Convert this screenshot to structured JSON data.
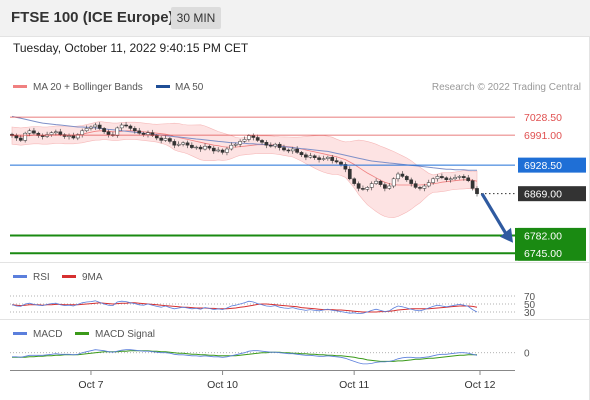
{
  "header": {
    "title": "FTSE 100 (ICE Europe)",
    "timeframe": "30 MIN",
    "timestamp": "Tuesday, October 11, 2022 9:40:15 PM CET"
  },
  "legend": {
    "ma20_label": "MA 20 + Bollinger Bands",
    "ma50_label": "MA 50",
    "credit": "Research © 2022 Trading Central"
  },
  "colors": {
    "bollinger_fill": "#fde3e3",
    "ma20": "#f08080",
    "ma50": "#1f4e96",
    "resistance": "#e05050",
    "pivot": "#1f6fd6",
    "current": "#333333",
    "support": "#1a8a12",
    "rsi": "#5b7fdc",
    "rsi_ma": "#d63030",
    "macd": "#5b7fdc",
    "macd_signal": "#3b9a1a",
    "arrow": "#2f5aa0"
  },
  "chart_data": [
    {
      "type": "line",
      "title": "FTSE 100 (ICE Europe)",
      "ylim": [
        6735,
        7060
      ],
      "levels": [
        {
          "value": 7028.5,
          "label": "7028.50",
          "kind": "resistance"
        },
        {
          "value": 6991.0,
          "label": "6991.00",
          "kind": "resistance"
        },
        {
          "value": 6928.5,
          "label": "6928.50",
          "kind": "pivot"
        },
        {
          "value": 6869.0,
          "label": "6869.00",
          "kind": "current"
        },
        {
          "value": 6782.0,
          "label": "6782.00",
          "kind": "support"
        },
        {
          "value": 6745.0,
          "label": "6745.00",
          "kind": "support"
        }
      ],
      "x_ticks": [
        "Oct 7",
        "Oct 10",
        "Oct 11",
        "Oct 12"
      ],
      "close": [
        6990,
        6985,
        6980,
        6995,
        7000,
        6995,
        6990,
        6988,
        6992,
        6996,
        6998,
        6992,
        6988,
        6990,
        6985,
        6992,
        7000,
        7005,
        7008,
        7012,
        7005,
        6998,
        6992,
        6990,
        7006,
        7012,
        7010,
        7005,
        7000,
        6995,
        6992,
        6996,
        6990,
        6985,
        6980,
        6984,
        6978,
        6970,
        6972,
        6975,
        6970,
        6965,
        6966,
        6962,
        6968,
        6964,
        6958,
        6960,
        6955,
        6962,
        6970,
        6972,
        6978,
        6982,
        6990,
        6986,
        6980,
        6976,
        6970,
        6968,
        6972,
        6965,
        6960,
        6958,
        6962,
        6955,
        6950,
        6945,
        6948,
        6944,
        6940,
        6942,
        6945,
        6938,
        6935,
        6930,
        6920,
        6900,
        6890,
        6880,
        6878,
        6882,
        6890,
        6895,
        6888,
        6880,
        6885,
        6900,
        6910,
        6905,
        6898,
        6890,
        6882,
        6880,
        6885,
        6892,
        6900,
        6905,
        6902,
        6898,
        6900,
        6903,
        6905,
        6902,
        6896,
        6880,
        6869
      ],
      "series": [
        {
          "name": "MA 20 + Bollinger Bands",
          "values": [
            6990,
            6989,
            6988,
            6989,
            6990,
            6991,
            6991,
            6990,
            6990,
            6991,
            6992,
            6992,
            6991,
            6991,
            6991,
            6992,
            6993,
            6995,
            6997,
            6999,
            7000,
            7000,
            6999,
            6998,
            6998,
            6999,
            7000,
            7000,
            7000,
            6999,
            6998,
            6997,
            6996,
            6995,
            6994,
            6993,
            6991,
            6988,
            6986,
            6984,
            6982,
            6980,
            6978,
            6976,
            6974,
            6972,
            6970,
            6969,
            6967,
            6966,
            6966,
            6966,
            6967,
            6968,
            6969,
            6970,
            6971,
            6971,
            6971,
            6971,
            6970,
            6969,
            6968,
            6967,
            6966,
            6964,
            6962,
            6960,
            6958,
            6956,
            6954,
            6952,
            6950,
            6948,
            6946,
            6943,
            6940,
            6935,
            6930,
            6924,
            6918,
            6912,
            6907,
            6902,
            6897,
            6893,
            6890,
            6888,
            6887,
            6887,
            6887,
            6887,
            6887,
            6887,
            6888,
            6889,
            6890,
            6891,
            6893,
            6894,
            6895,
            6896,
            6897,
            6898,
            6898,
            6897,
            6895
          ]
        },
        {
          "name": "MA 50",
          "values": [
            7030,
            7028,
            7026,
            7024,
            7022,
            7020,
            7018,
            7016,
            7015,
            7014,
            7013,
            7012,
            7011,
            7010,
            7009,
            7008,
            7008,
            7007,
            7007,
            7006,
            7005,
            7004,
            7003,
            7002,
            7001,
            7000,
            6999,
            6998,
            6997,
            6996,
            6995,
            6994,
            6993,
            6992,
            6991,
            6990,
            6989,
            6988,
            6987,
            6986,
            6985,
            6984,
            6983,
            6982,
            6981,
            6980,
            6979,
            6978,
            6977,
            6976,
            6975,
            6975,
            6974,
            6974,
            6973,
            6973,
            6972,
            6972,
            6971,
            6970,
            6969,
            6968,
            6967,
            6966,
            6965,
            6964,
            6963,
            6962,
            6961,
            6960,
            6959,
            6958,
            6957,
            6955,
            6953,
            6951,
            6949,
            6947,
            6945,
            6943,
            6941,
            6939,
            6937,
            6936,
            6935,
            6934,
            6933,
            6932,
            6931,
            6930,
            6929,
            6928,
            6927,
            6926,
            6925,
            6924,
            6923,
            6922,
            6921,
            6920,
            6920,
            6919,
            6919,
            6919,
            6918,
            6918,
            6918
          ]
        }
      ]
    },
    {
      "type": "line",
      "legend": [
        "RSI",
        "9MA"
      ],
      "ylim": [
        20,
        80
      ],
      "levels": [
        70,
        50,
        30
      ],
      "level_labels": [
        "70",
        "50",
        "30"
      ],
      "series": [
        {
          "name": "RSI",
          "values": [
            48,
            45,
            44,
            50,
            52,
            49,
            47,
            46,
            49,
            51,
            52,
            48,
            46,
            47,
            45,
            49,
            53,
            55,
            56,
            58,
            54,
            50,
            47,
            46,
            55,
            57,
            56,
            53,
            51,
            48,
            47,
            50,
            47,
            44,
            42,
            45,
            41,
            38,
            40,
            42,
            40,
            38,
            39,
            37,
            41,
            39,
            36,
            38,
            36,
            40,
            45,
            47,
            50,
            53,
            57,
            55,
            51,
            48,
            45,
            44,
            46,
            42,
            40,
            39,
            41,
            38,
            36,
            34,
            36,
            34,
            33,
            35,
            37,
            34,
            33,
            31,
            29,
            27,
            28,
            26,
            27,
            30,
            34,
            37,
            34,
            31,
            33,
            40,
            45,
            43,
            40,
            37,
            34,
            33,
            36,
            40,
            44,
            47,
            45,
            43,
            45,
            47,
            49,
            47,
            44,
            36,
            30
          ]
        },
        {
          "name": "9MA",
          "values": [
            48,
            47,
            46,
            47,
            48,
            48,
            48,
            47,
            48,
            48,
            49,
            49,
            48,
            48,
            48,
            48,
            49,
            50,
            51,
            52,
            53,
            52,
            51,
            50,
            51,
            52,
            52,
            53,
            53,
            52,
            51,
            50,
            49,
            48,
            47,
            46,
            45,
            44,
            43,
            42,
            42,
            41,
            40,
            40,
            40,
            39,
            39,
            38,
            38,
            38,
            39,
            40,
            42,
            43,
            45,
            47,
            49,
            50,
            50,
            49,
            48,
            47,
            46,
            45,
            44,
            43,
            41,
            40,
            39,
            38,
            37,
            36,
            36,
            36,
            35,
            35,
            34,
            33,
            32,
            31,
            30,
            30,
            30,
            30,
            31,
            31,
            32,
            33,
            35,
            36,
            37,
            38,
            38,
            38,
            38,
            38,
            39,
            40,
            41,
            42,
            43,
            44,
            45,
            45,
            45,
            44,
            42
          ]
        }
      ]
    },
    {
      "type": "line",
      "legend": [
        "MACD",
        "MACD Signal"
      ],
      "levels": [
        0
      ],
      "level_labels": [
        "0"
      ],
      "ylim": [
        -30,
        25
      ],
      "series": [
        {
          "name": "MACD",
          "values": [
            -8,
            -8,
            -9,
            -7,
            -5,
            -5,
            -5,
            -5,
            -4,
            -3,
            -2,
            -3,
            -3,
            -3,
            -4,
            -3,
            0,
            2,
            4,
            6,
            5,
            4,
            2,
            1,
            3,
            5,
            6,
            6,
            5,
            4,
            3,
            3,
            2,
            1,
            0,
            0,
            -1,
            -3,
            -4,
            -4,
            -5,
            -6,
            -6,
            -7,
            -6,
            -7,
            -8,
            -8,
            -9,
            -8,
            -6,
            -4,
            -2,
            0,
            3,
            4,
            4,
            3,
            2,
            1,
            1,
            0,
            -1,
            -2,
            -2,
            -3,
            -4,
            -5,
            -5,
            -6,
            -7,
            -7,
            -6,
            -7,
            -8,
            -9,
            -11,
            -14,
            -17,
            -20,
            -22,
            -22,
            -21,
            -19,
            -18,
            -18,
            -17,
            -15,
            -12,
            -10,
            -9,
            -9,
            -10,
            -10,
            -9,
            -8,
            -6,
            -4,
            -3,
            -3,
            -2,
            -1,
            0,
            0,
            -1,
            -3,
            -5
          ]
        },
        {
          "name": "MACD Signal",
          "values": [
            -9,
            -9,
            -9,
            -9,
            -8,
            -8,
            -7,
            -7,
            -6,
            -6,
            -5,
            -5,
            -4,
            -4,
            -4,
            -4,
            -3,
            -2,
            -1,
            0,
            1,
            2,
            2,
            2,
            2,
            3,
            3,
            4,
            4,
            4,
            4,
            4,
            3,
            3,
            2,
            2,
            1,
            0,
            -1,
            -1,
            -2,
            -3,
            -3,
            -4,
            -4,
            -5,
            -5,
            -6,
            -6,
            -6,
            -6,
            -6,
            -5,
            -4,
            -3,
            -2,
            -1,
            0,
            0,
            1,
            1,
            1,
            0,
            0,
            -1,
            -1,
            -2,
            -2,
            -3,
            -3,
            -4,
            -4,
            -5,
            -5,
            -6,
            -6,
            -7,
            -8,
            -9,
            -11,
            -12,
            -14,
            -15,
            -16,
            -17,
            -17,
            -17,
            -17,
            -16,
            -16,
            -15,
            -14,
            -13,
            -13,
            -12,
            -11,
            -11,
            -10,
            -9,
            -8,
            -7,
            -6,
            -5,
            -5,
            -4,
            -4,
            -4
          ]
        }
      ]
    }
  ]
}
